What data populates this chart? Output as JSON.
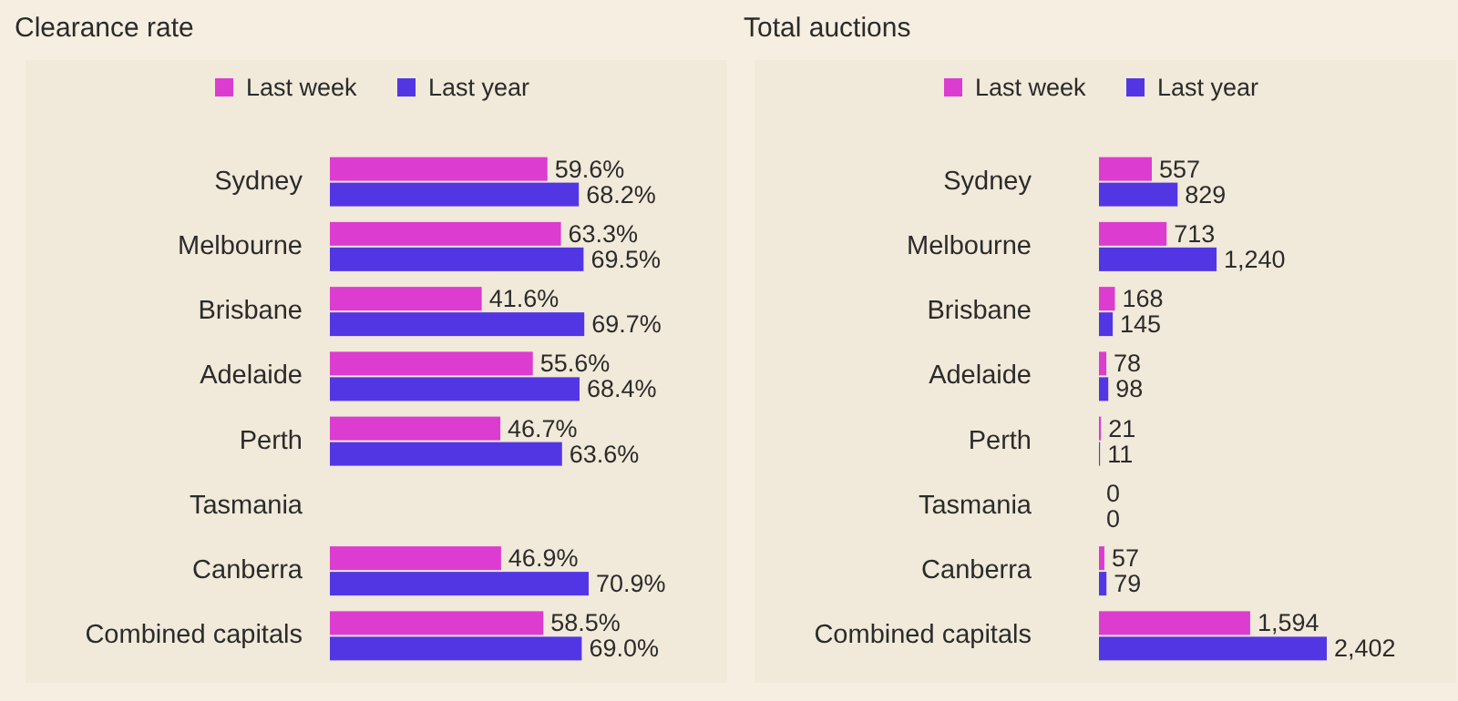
{
  "chart_data": [
    {
      "type": "bar",
      "title": "Clearance rate",
      "orientation": "horizontal",
      "legend": "top",
      "data_labels": true,
      "categories": [
        "Sydney",
        "Melbourne",
        "Brisbane",
        "Adelaide",
        "Perth",
        "Tasmania",
        "Canberra",
        "Combined capitals"
      ],
      "series": [
        {
          "name": "Last week",
          "color": "#dc3ccf",
          "values": [
            59.6,
            63.3,
            41.6,
            55.6,
            46.7,
            null,
            46.9,
            58.5
          ],
          "value_labels": [
            "59.6%",
            "63.3%",
            "41.6%",
            "55.6%",
            "46.7%",
            null,
            "46.9%",
            "58.5%"
          ]
        },
        {
          "name": "Last year",
          "color": "#5236e4",
          "values": [
            68.2,
            69.5,
            69.7,
            68.4,
            63.6,
            null,
            70.9,
            69.0
          ],
          "value_labels": [
            "68.2%",
            "69.5%",
            "69.7%",
            "68.4%",
            "63.6%",
            null,
            "70.9%",
            "69.0%"
          ]
        }
      ]
    },
    {
      "type": "bar",
      "title": "Total auctions",
      "orientation": "horizontal",
      "legend": "top",
      "data_labels": true,
      "categories": [
        "Sydney",
        "Melbourne",
        "Brisbane",
        "Adelaide",
        "Perth",
        "Tasmania",
        "Canberra",
        "Combined capitals"
      ],
      "series": [
        {
          "name": "Last week",
          "color": "#dc3ccf",
          "values": [
            557,
            713,
            168,
            78,
            21,
            0,
            57,
            1594
          ],
          "value_labels": [
            "557",
            "713",
            "168",
            "78",
            "21",
            "0",
            "57",
            "1,594"
          ]
        },
        {
          "name": "Last year",
          "color": "#5236e4",
          "values": [
            829,
            1240,
            145,
            98,
            11,
            0,
            79,
            2402
          ],
          "value_labels": [
            "829",
            "1,240",
            "145",
            "98",
            "11",
            "0",
            "79",
            "2,402"
          ]
        }
      ]
    }
  ]
}
